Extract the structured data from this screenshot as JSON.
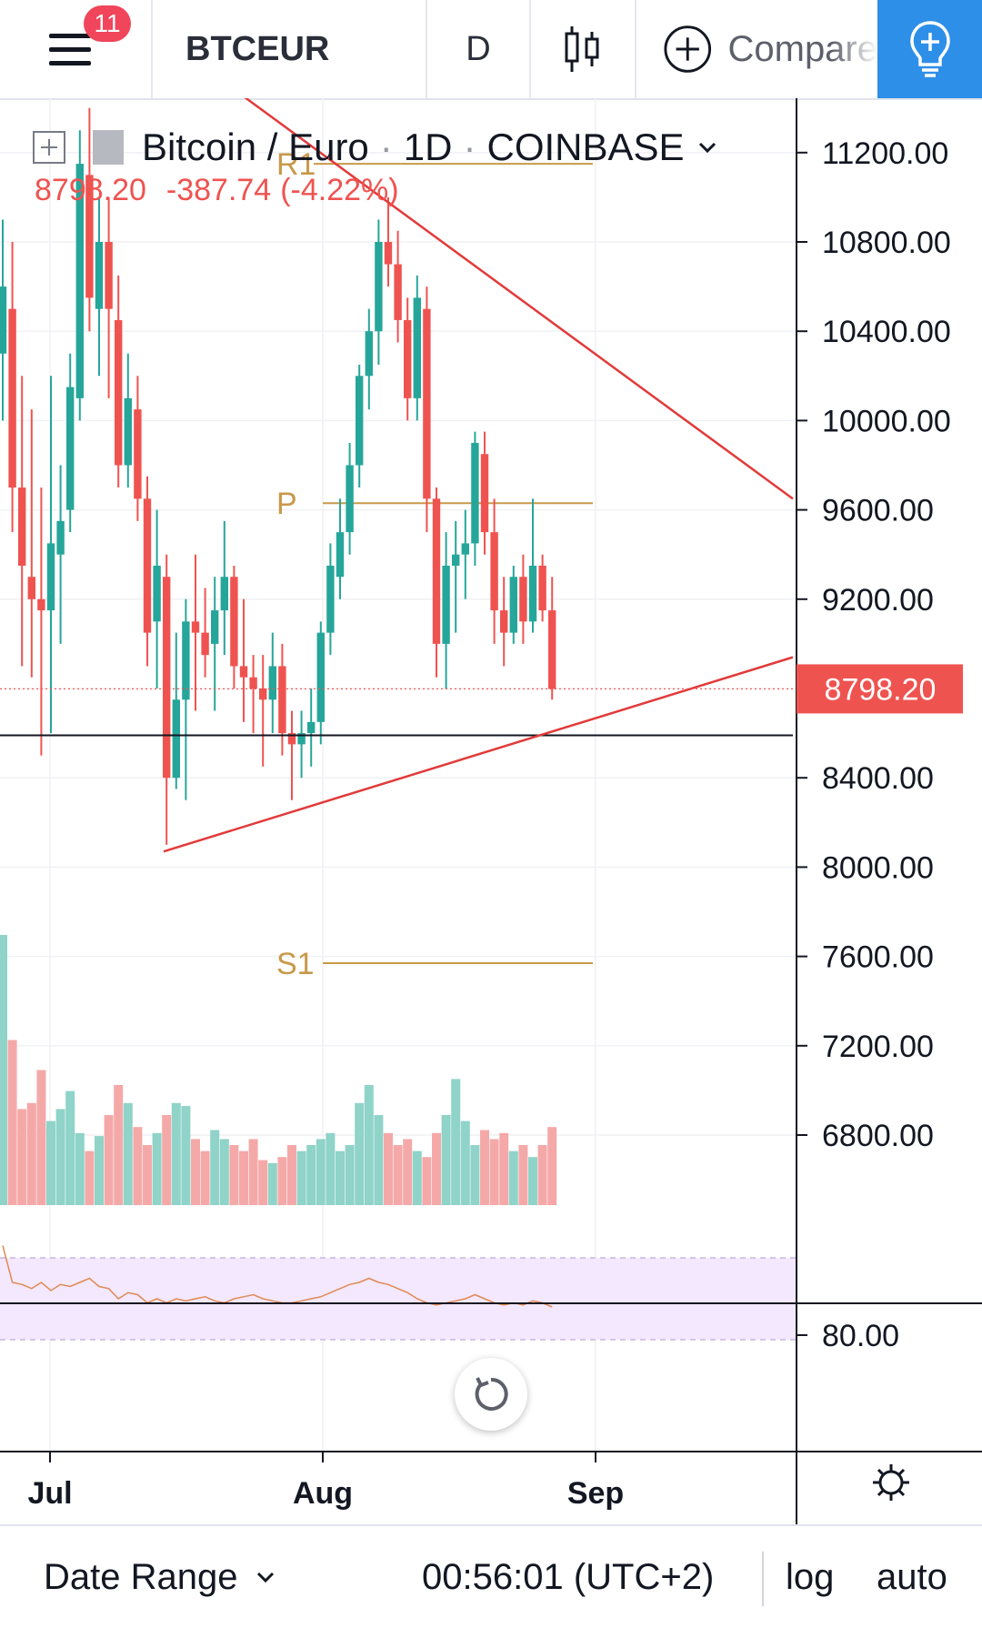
{
  "toolbar": {
    "notifications_count": "11",
    "symbol": "BTCEUR",
    "interval": "D",
    "compare_label": "Compare",
    "icons": [
      "menu-icon",
      "candles-icon",
      "plus-circle-icon",
      "lightbulb-icon"
    ]
  },
  "legend": {
    "name": "Bitcoin / Euro",
    "interval": "1D",
    "exchange": "COINBASE",
    "last_price": "8798.20",
    "change": "-387.74",
    "change_pct": "(-4.22%)"
  },
  "pivots": {
    "r1": "R1",
    "p": "P",
    "s1": "S1"
  },
  "price_axis": {
    "labels": [
      "11200.00",
      "10800.00",
      "10400.00",
      "10000.00",
      "9600.00",
      "9200.00",
      "8400.00",
      "8000.00",
      "7600.00",
      "7200.00",
      "6800.00"
    ],
    "current_price_label": "8798.20"
  },
  "rsi_axis": {
    "labels": [
      "80.00"
    ]
  },
  "time_axis": {
    "labels": [
      "Jul",
      "Aug",
      "Sep"
    ]
  },
  "bottom_bar": {
    "date_range": "Date Range",
    "clock": "00:56:01 (UTC+2)",
    "log": "log",
    "auto": "auto"
  },
  "colors": {
    "up": "#26a69a",
    "down": "#ef5350",
    "pivot": "#c8994a",
    "accent": "#2e8fe8",
    "rsi_band": "#f3e8fd"
  },
  "chart_data": {
    "type": "candlestick",
    "symbol": "BTCEUR",
    "price_range": [
      6800,
      11200
    ],
    "pivots": {
      "R1": 11150,
      "P": 9630,
      "S1": 7570
    },
    "horizontal_line": 8590,
    "trendlines": [
      {
        "from": [
          "Jun 28",
          11520
        ],
        "to": [
          "Sep 07",
          9650
        ]
      },
      {
        "from": [
          "Jul 12",
          8070
        ],
        "to": [
          "Sep 07",
          8940
        ]
      }
    ],
    "ohlc": [
      [
        10300,
        10900,
        10000,
        10600
      ],
      [
        10500,
        10800,
        9500,
        9700
      ],
      [
        9700,
        10200,
        8900,
        9350
      ],
      [
        9300,
        10050,
        8850,
        9200
      ],
      [
        9200,
        9700,
        8500,
        9150
      ],
      [
        9150,
        10200,
        8600,
        9450
      ],
      [
        9400,
        9800,
        9000,
        9550
      ],
      [
        9600,
        10300,
        9500,
        10150
      ],
      [
        10100,
        11300,
        10000,
        11150
      ],
      [
        11100,
        11400,
        10400,
        10550
      ],
      [
        10500,
        11000,
        10200,
        10800
      ],
      [
        10800,
        11000,
        10100,
        10500
      ],
      [
        10450,
        10650,
        9700,
        9800
      ],
      [
        9800,
        10300,
        9700,
        10100
      ],
      [
        10050,
        10200,
        9550,
        9650
      ],
      [
        9650,
        9750,
        8900,
        9050
      ],
      [
        9100,
        9600,
        8800,
        9350
      ],
      [
        9300,
        9400,
        8100,
        8400
      ],
      [
        8400,
        9050,
        8350,
        8750
      ],
      [
        8750,
        9200,
        8300,
        9100
      ],
      [
        9100,
        9400,
        8700,
        9050
      ],
      [
        9050,
        9250,
        8850,
        8950
      ],
      [
        9000,
        9300,
        8700,
        9150
      ],
      [
        9150,
        9550,
        8950,
        9300
      ],
      [
        9300,
        9350,
        8800,
        8900
      ],
      [
        8900,
        9200,
        8650,
        8850
      ],
      [
        8850,
        8950,
        8600,
        8800
      ],
      [
        8800,
        8950,
        8450,
        8750
      ],
      [
        8750,
        9050,
        8600,
        8900
      ],
      [
        8900,
        9000,
        8500,
        8600
      ],
      [
        8600,
        8700,
        8300,
        8550
      ],
      [
        8550,
        8700,
        8400,
        8600
      ],
      [
        8600,
        8800,
        8450,
        8650
      ],
      [
        8650,
        9100,
        8550,
        9050
      ],
      [
        9050,
        9450,
        8950,
        9350
      ],
      [
        9300,
        9650,
        9200,
        9500
      ],
      [
        9500,
        9900,
        9400,
        9800
      ],
      [
        9800,
        10250,
        9700,
        10200
      ],
      [
        10200,
        10500,
        10050,
        10400
      ],
      [
        10400,
        10900,
        10250,
        10800
      ],
      [
        10800,
        11000,
        10600,
        10700
      ],
      [
        10700,
        10850,
        10350,
        10450
      ],
      [
        10450,
        10550,
        10000,
        10100
      ],
      [
        10100,
        10650,
        10000,
        10550
      ],
      [
        10500,
        10600,
        9500,
        9650
      ],
      [
        9650,
        9700,
        8850,
        9000
      ],
      [
        9000,
        9500,
        8800,
        9350
      ],
      [
        9350,
        9550,
        9050,
        9400
      ],
      [
        9400,
        9600,
        9200,
        9450
      ],
      [
        9450,
        9950,
        9350,
        9900
      ],
      [
        9850,
        9950,
        9400,
        9500
      ],
      [
        9500,
        9650,
        9000,
        9150
      ],
      [
        9150,
        9300,
        8900,
        9050
      ],
      [
        9050,
        9350,
        9000,
        9300
      ],
      [
        9300,
        9400,
        9000,
        9100
      ],
      [
        9100,
        9650,
        9050,
        9350
      ],
      [
        9350,
        9400,
        9100,
        9150
      ],
      [
        9150,
        9300,
        8750,
        8798
      ]
    ],
    "volume_ratio": [
      0.9,
      0.55,
      0.32,
      0.34,
      0.45,
      0.28,
      0.32,
      0.38,
      0.24,
      0.18,
      0.23,
      0.3,
      0.4,
      0.34,
      0.26,
      0.2,
      0.24,
      0.3,
      0.34,
      0.33,
      0.22,
      0.18,
      0.25,
      0.22,
      0.2,
      0.18,
      0.22,
      0.15,
      0.14,
      0.16,
      0.2,
      0.18,
      0.2,
      0.22,
      0.24,
      0.18,
      0.2,
      0.34,
      0.4,
      0.3,
      0.24,
      0.2,
      0.22,
      0.18,
      0.16,
      0.24,
      0.3,
      0.42,
      0.28,
      0.2,
      0.25,
      0.22,
      0.24,
      0.18,
      0.2,
      0.16,
      0.2,
      0.26
    ],
    "rsi": [
      76,
      58,
      57,
      55,
      58,
      54,
      57,
      56,
      58,
      60,
      56,
      55,
      50,
      53,
      52,
      48,
      50,
      48,
      50,
      49,
      50,
      51,
      49,
      48,
      50,
      51,
      52,
      50,
      49,
      48,
      48,
      49,
      50,
      51,
      53,
      55,
      57,
      58,
      60,
      58,
      57,
      55,
      53,
      50,
      48,
      47,
      48,
      49,
      50,
      52,
      50,
      48,
      47,
      48,
      47,
      49,
      48,
      46
    ]
  }
}
